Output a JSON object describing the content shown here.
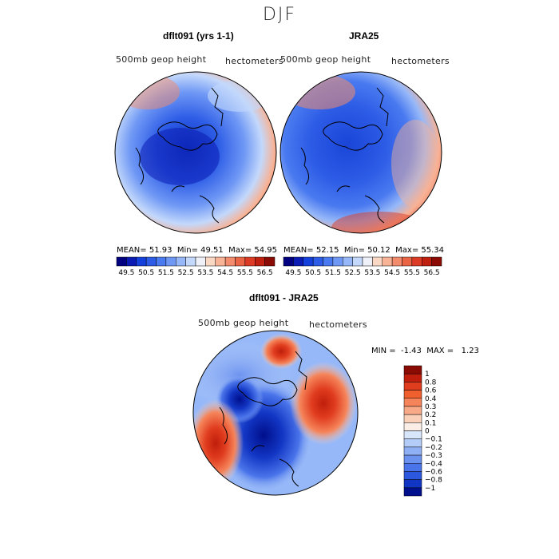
{
  "title": "DJF",
  "panels": [
    {
      "title": "dflt091 (yrs 1-1)",
      "field_label": "500mb geop height",
      "unit_label": "hectometers",
      "stats": {
        "mean_label": "MEAN=",
        "mean": "51.93",
        "min_label": "Min=",
        "min": "49.51",
        "max_label": "Max=",
        "max": "54.95"
      }
    },
    {
      "title": "JRA25",
      "field_label": "500mb geop height",
      "unit_label": "hectometers",
      "stats": {
        "mean_label": "MEAN=",
        "mean": "52.15",
        "min_label": "Min=",
        "min": "50.12",
        "max_label": "Max=",
        "max": "55.34"
      }
    }
  ],
  "shared_colorbar": {
    "colors": [
      "#000080",
      "#0a1cb4",
      "#1440dc",
      "#2d5ce6",
      "#4a7af0",
      "#6f98f5",
      "#97b8f8",
      "#c3d8fb",
      "#eef2f8",
      "#fbd8c4",
      "#f8b295",
      "#f38c6c",
      "#ea6446",
      "#dc3c25",
      "#c0200f",
      "#8a0a04"
    ],
    "tick_labels": [
      "49.5",
      "50.5",
      "51.5",
      "52.5",
      "53.5",
      "54.5",
      "55.5",
      "56.5"
    ]
  },
  "difference": {
    "title": "dflt091 - JRA25",
    "field_label": "500mb geop height",
    "unit_label": "hectometers",
    "min_label": "MIN =",
    "min": "-1.43",
    "max_label": "MAX =",
    "max": "1.23",
    "colorbar": {
      "colors_top_to_bottom": [
        "#8a0a04",
        "#c01e0c",
        "#e03c1e",
        "#f0602e",
        "#f5845a",
        "#f8aa88",
        "#fbd0b8",
        "#faeee6",
        "#d8e6fb",
        "#b4ccf8",
        "#8fb0f4",
        "#6c92ef",
        "#4a74ea",
        "#2c58e0",
        "#1236c4",
        "#000f8c"
      ],
      "tick_labels_top_to_bottom": [
        "1",
        "0.8",
        "0.6",
        "0.4",
        "0.3",
        "0.2",
        "0.1",
        "0",
        "−0.1",
        "−0.2",
        "−0.3",
        "−0.4",
        "−0.6",
        "−0.8",
        "−1"
      ]
    }
  }
}
